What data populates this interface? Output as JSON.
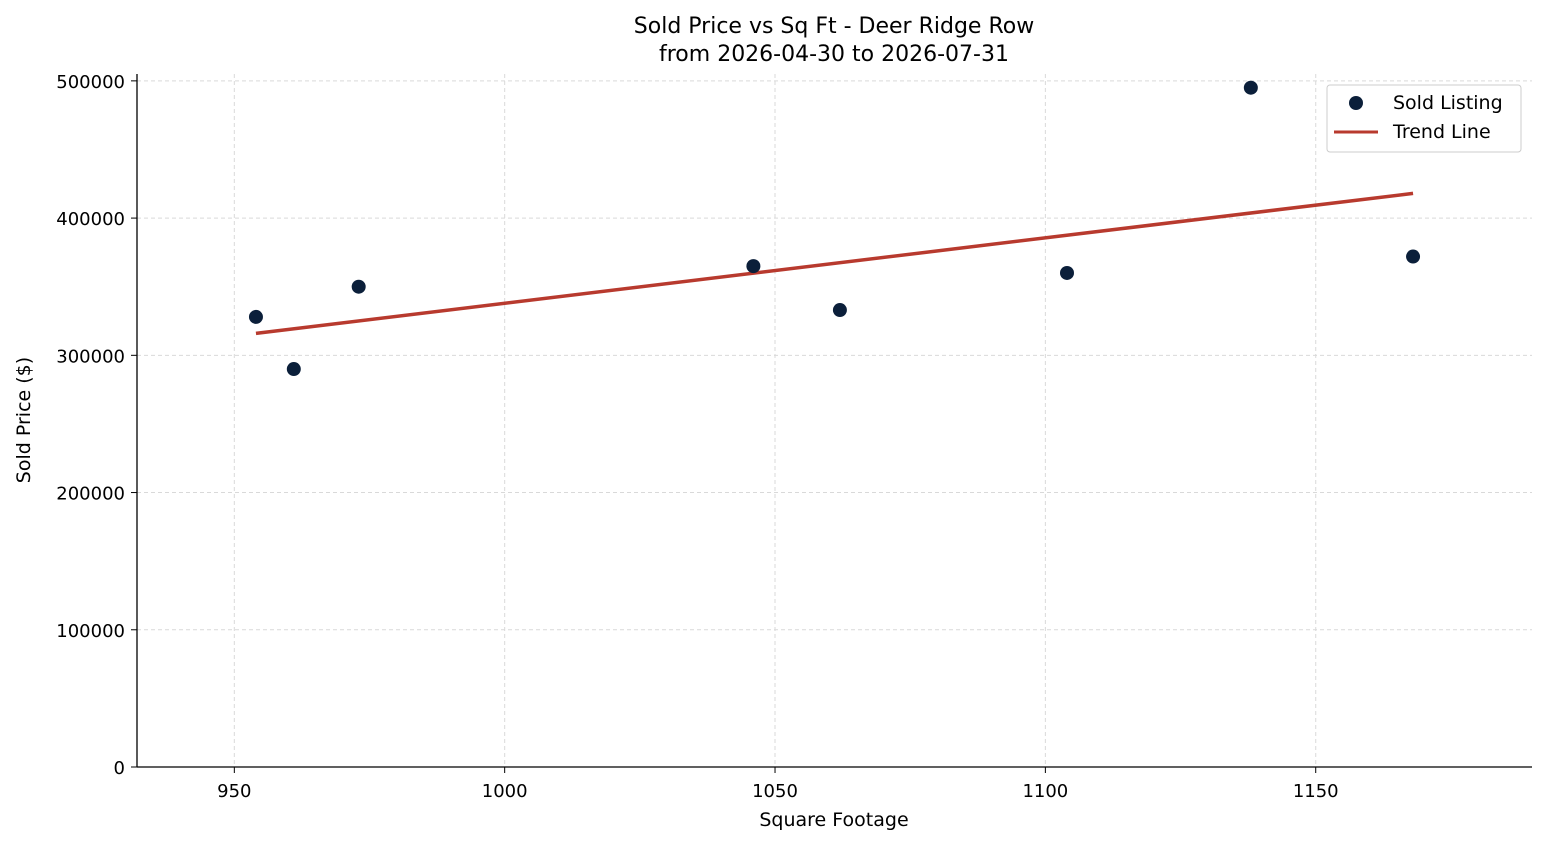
{
  "chart_data": {
    "type": "scatter",
    "title": "Sold Price vs Sq Ft - Deer Ridge Row",
    "subtitle": "from 2026-04-30 to 2026-07-31",
    "xlabel": "Square Footage",
    "ylabel": "Sold Price ($)",
    "xlim": [
      932,
      1190
    ],
    "ylim": [
      0,
      505000
    ],
    "x_ticks": [
      950,
      1000,
      1050,
      1100,
      1150
    ],
    "y_ticks": [
      0,
      100000,
      200000,
      300000,
      400000,
      500000
    ],
    "grid": true,
    "legend_position": "top-right",
    "series": [
      {
        "name": "Sold Listing",
        "kind": "scatter",
        "color": "#0b1f3a",
        "points": [
          {
            "x": 954,
            "y": 328000
          },
          {
            "x": 961,
            "y": 290000
          },
          {
            "x": 973,
            "y": 350000
          },
          {
            "x": 1046,
            "y": 365000
          },
          {
            "x": 1062,
            "y": 333000
          },
          {
            "x": 1104,
            "y": 360000
          },
          {
            "x": 1138,
            "y": 495000
          },
          {
            "x": 1168,
            "y": 372000
          }
        ]
      },
      {
        "name": "Trend Line",
        "kind": "line",
        "color": "#b83a2e",
        "points": [
          {
            "x": 954,
            "y": 316000
          },
          {
            "x": 1168,
            "y": 418000
          }
        ]
      }
    ]
  }
}
